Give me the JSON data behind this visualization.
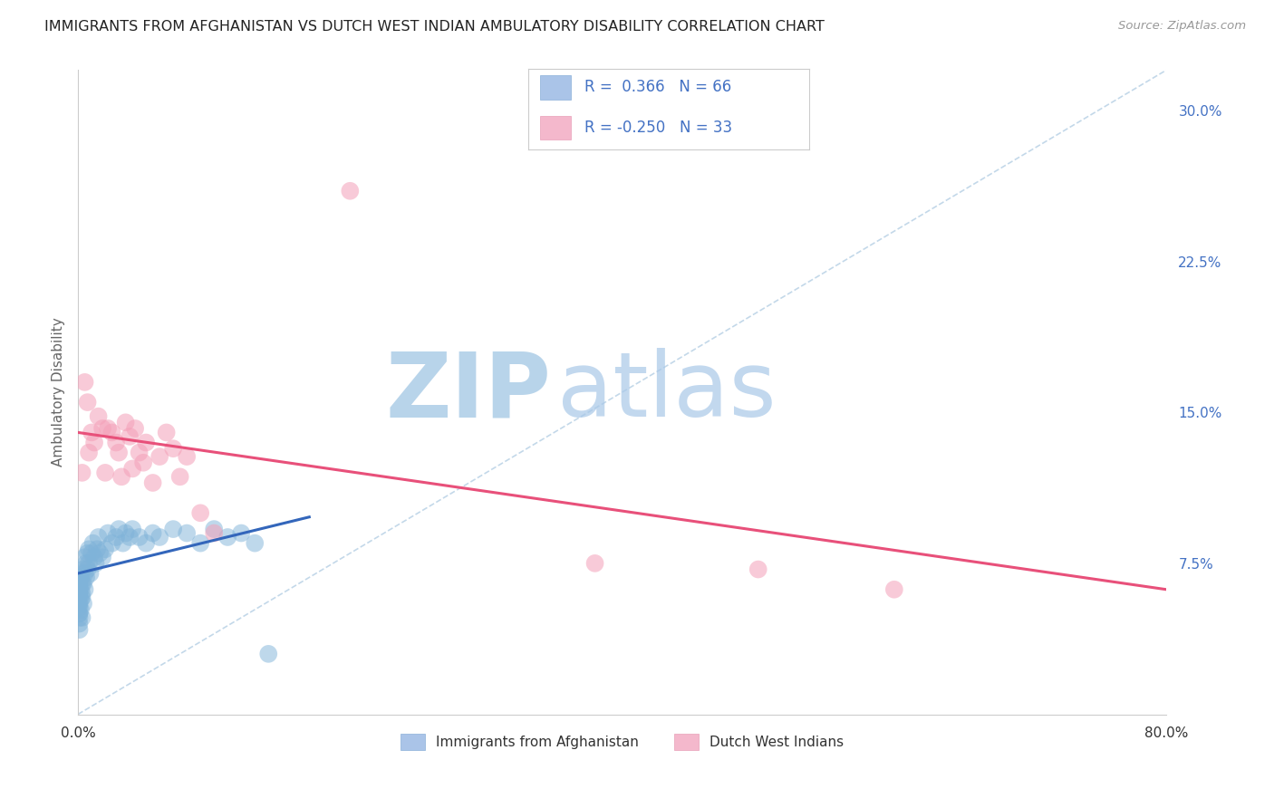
{
  "title": "IMMIGRANTS FROM AFGHANISTAN VS DUTCH WEST INDIAN AMBULATORY DISABILITY CORRELATION CHART",
  "source": "Source: ZipAtlas.com",
  "ylabel": "Ambulatory Disability",
  "x_min": 0.0,
  "x_max": 0.8,
  "y_min": 0.0,
  "y_max": 0.32,
  "y_ticks": [
    0.075,
    0.15,
    0.225,
    0.3
  ],
  "y_tick_labels": [
    "7.5%",
    "15.0%",
    "22.5%",
    "30.0%"
  ],
  "x_ticks": [
    0.0,
    0.8
  ],
  "x_tick_labels": [
    "0.0%",
    "80.0%"
  ],
  "blue_scatter_x": [
    0.0005,
    0.0005,
    0.0006,
    0.0006,
    0.0007,
    0.0007,
    0.0008,
    0.0008,
    0.0009,
    0.001,
    0.001,
    0.001,
    0.001,
    0.001,
    0.001,
    0.001,
    0.002,
    0.002,
    0.002,
    0.002,
    0.003,
    0.003,
    0.003,
    0.003,
    0.004,
    0.004,
    0.004,
    0.005,
    0.005,
    0.005,
    0.006,
    0.006,
    0.007,
    0.007,
    0.008,
    0.008,
    0.009,
    0.01,
    0.011,
    0.012,
    0.013,
    0.014,
    0.015,
    0.016,
    0.018,
    0.02,
    0.022,
    0.025,
    0.028,
    0.03,
    0.033,
    0.035,
    0.038,
    0.04,
    0.045,
    0.05,
    0.055,
    0.06,
    0.07,
    0.08,
    0.09,
    0.1,
    0.11,
    0.12,
    0.13,
    0.14
  ],
  "blue_scatter_y": [
    0.058,
    0.062,
    0.055,
    0.068,
    0.06,
    0.05,
    0.065,
    0.053,
    0.045,
    0.07,
    0.065,
    0.06,
    0.055,
    0.05,
    0.048,
    0.042,
    0.068,
    0.062,
    0.057,
    0.052,
    0.065,
    0.06,
    0.058,
    0.048,
    0.072,
    0.065,
    0.055,
    0.078,
    0.07,
    0.062,
    0.075,
    0.068,
    0.08,
    0.072,
    0.082,
    0.075,
    0.07,
    0.08,
    0.085,
    0.078,
    0.075,
    0.082,
    0.088,
    0.08,
    0.078,
    0.082,
    0.09,
    0.085,
    0.088,
    0.092,
    0.085,
    0.09,
    0.088,
    0.092,
    0.088,
    0.085,
    0.09,
    0.088,
    0.092,
    0.09,
    0.085,
    0.092,
    0.088,
    0.09,
    0.085,
    0.03
  ],
  "pink_scatter_x": [
    0.003,
    0.005,
    0.007,
    0.008,
    0.01,
    0.012,
    0.015,
    0.018,
    0.02,
    0.022,
    0.025,
    0.028,
    0.03,
    0.032,
    0.035,
    0.038,
    0.04,
    0.042,
    0.045,
    0.048,
    0.05,
    0.055,
    0.06,
    0.065,
    0.07,
    0.075,
    0.08,
    0.09,
    0.1,
    0.2,
    0.38,
    0.5,
    0.6
  ],
  "pink_scatter_y": [
    0.12,
    0.165,
    0.155,
    0.13,
    0.14,
    0.135,
    0.148,
    0.142,
    0.12,
    0.142,
    0.14,
    0.135,
    0.13,
    0.118,
    0.145,
    0.138,
    0.122,
    0.142,
    0.13,
    0.125,
    0.135,
    0.115,
    0.128,
    0.14,
    0.132,
    0.118,
    0.128,
    0.1,
    0.09,
    0.26,
    0.075,
    0.072,
    0.062
  ],
  "blue_line_x": [
    0.0,
    0.17
  ],
  "blue_line_y": [
    0.07,
    0.098
  ],
  "pink_line_x": [
    0.0,
    0.8
  ],
  "pink_line_y": [
    0.14,
    0.062
  ],
  "diag_line_x": [
    0.0,
    0.8
  ],
  "diag_line_y": [
    0.0,
    0.32
  ],
  "watermark_zip": "ZIP",
  "watermark_atlas": "atlas",
  "watermark_color": "#c8dff0",
  "bg_color": "#ffffff",
  "grid_color": "#dddddd",
  "blue_color": "#7fb3d9",
  "pink_color": "#f4a0b8",
  "blue_line_color": "#3366bb",
  "pink_line_color": "#e8507a",
  "title_color": "#222222",
  "axis_label_color": "#666666",
  "tick_color_right": "#4472c4",
  "legend_text_color": "#4472c4",
  "legend_label_color": "#333333"
}
